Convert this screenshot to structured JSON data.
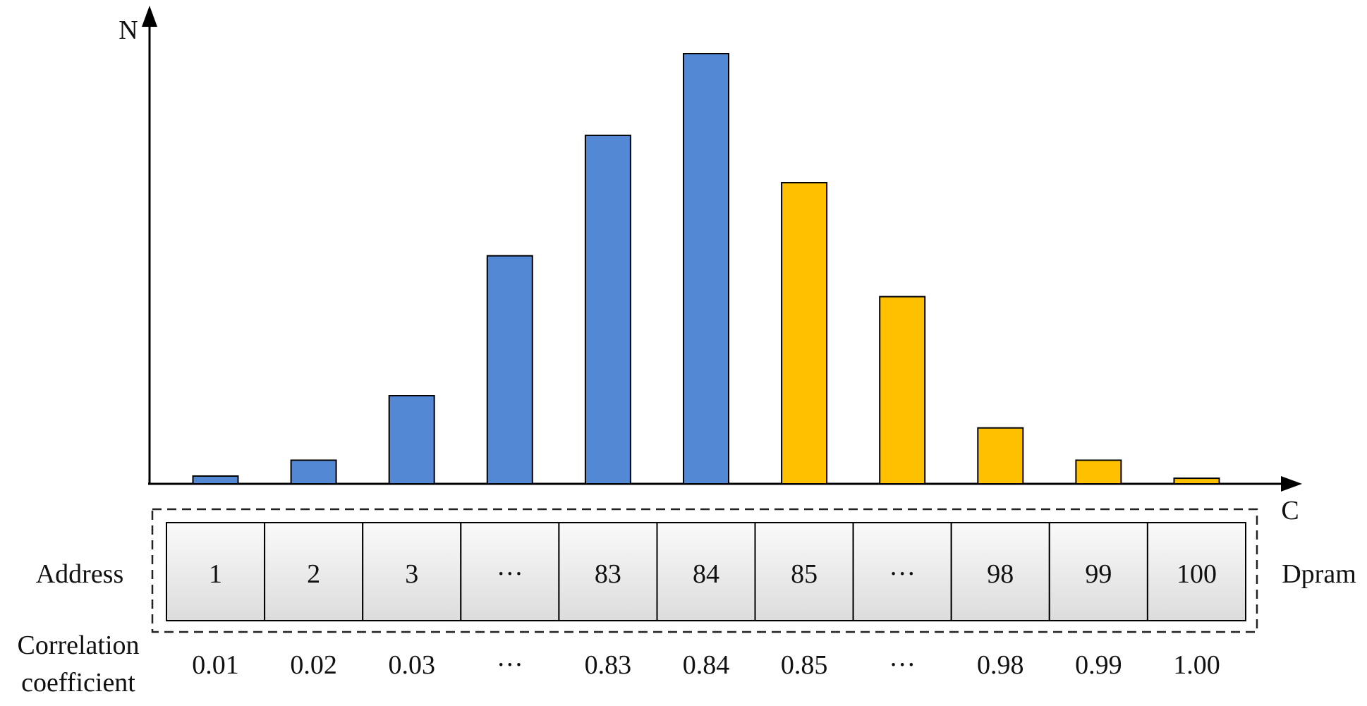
{
  "axes": {
    "y_label": "N",
    "x_label": "C"
  },
  "side_labels": {
    "address": "Address",
    "dpram": "Dpram",
    "correlation_line1": "Correlation",
    "correlation_line2": "coefficient"
  },
  "cells": [
    {
      "address": "1",
      "coefficient": "0.01"
    },
    {
      "address": "2",
      "coefficient": "0.02"
    },
    {
      "address": "3",
      "coefficient": "0.03"
    },
    {
      "address": "···",
      "coefficient": "···"
    },
    {
      "address": "83",
      "coefficient": "0.83"
    },
    {
      "address": "84",
      "coefficient": "0.84"
    },
    {
      "address": "85",
      "coefficient": "0.85"
    },
    {
      "address": "···",
      "coefficient": "···"
    },
    {
      "address": "98",
      "coefficient": "0.98"
    },
    {
      "address": "99",
      "coefficient": "0.99"
    },
    {
      "address": "100",
      "coefficient": "1.00"
    }
  ],
  "chart_data": {
    "type": "bar",
    "categories": [
      "1",
      "2",
      "3",
      "···",
      "83",
      "84",
      "85",
      "···",
      "98",
      "99",
      "100"
    ],
    "series": [
      {
        "values": [
          1.8,
          5.5,
          20.5,
          53,
          81,
          100,
          70,
          43.5,
          13,
          5.5,
          1.3
        ]
      }
    ],
    "bar_colors": [
      "#5288d4",
      "#5288d4",
      "#5288d4",
      "#5288d4",
      "#5288d4",
      "#5288d4",
      "#ffc000",
      "#ffc000",
      "#ffc000",
      "#ffc000",
      "#ffc000"
    ],
    "title": "",
    "xlabel": "C",
    "ylabel": "N",
    "ylim": [
      0,
      100
    ],
    "grid": false
  }
}
